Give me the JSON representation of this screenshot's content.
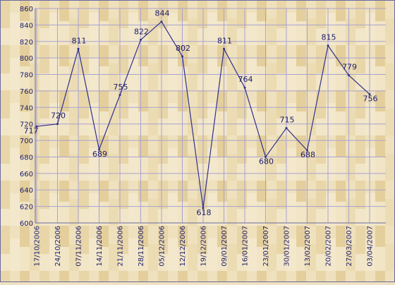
{
  "chart_data": {
    "type": "line",
    "title": "",
    "xlabel": "",
    "ylabel": "",
    "ylim": [
      600,
      860
    ],
    "y_ticks": [
      600,
      620,
      640,
      660,
      680,
      700,
      720,
      740,
      760,
      780,
      800,
      820,
      840,
      860
    ],
    "categories": [
      "17/10/2006",
      "24/10/2006",
      "07/11/2006",
      "14/11/2006",
      "21/11/2006",
      "28/11/2006",
      "05/12/2006",
      "12/12/2006",
      "19/12/2006",
      "09/01/2007",
      "16/01/2007",
      "23/01/2007",
      "30/01/2007",
      "13/02/2007",
      "20/02/2007",
      "27/03/2007",
      "03/04/2007"
    ],
    "series": [
      {
        "values": [
          717,
          720,
          811,
          689,
          755,
          822,
          844,
          802,
          618,
          811,
          764,
          680,
          715,
          688,
          815,
          779,
          756
        ]
      }
    ],
    "grid": true,
    "colors": {
      "line": "#30308a",
      "grid": "#a9a2ce",
      "text": "#1c1c6a",
      "background": "#efe2c0",
      "border": "#6a6aa0"
    }
  }
}
